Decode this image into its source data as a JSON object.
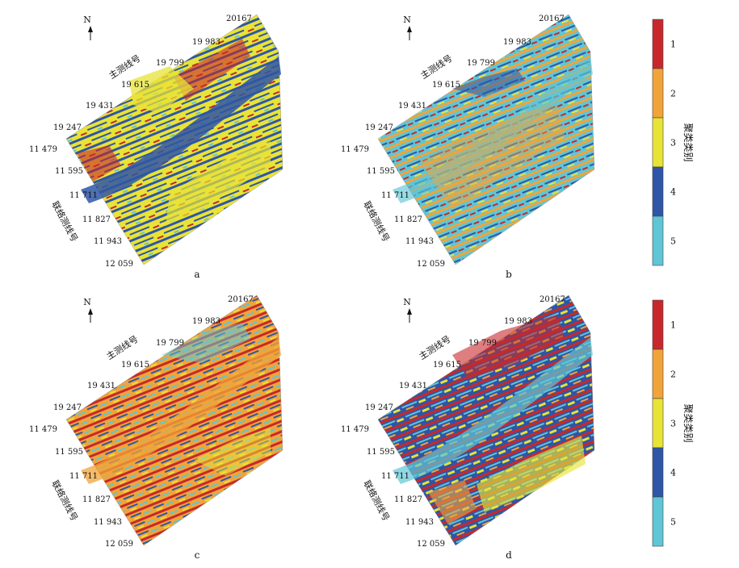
{
  "north_label": "N",
  "main_axis_title": "主测线号",
  "tie_axis_title": "联络测线号",
  "main_line_numbers": [
    "20167",
    "19 983",
    "19 799",
    "19 615",
    "19 431",
    "19 247"
  ],
  "tie_line_numbers": [
    "11 479",
    "11 595",
    "11 711",
    "11 827",
    "11 943",
    "12 059"
  ],
  "panels": [
    {
      "letter": "a",
      "dominant_colors": [
        "#e8e337",
        "#2f56a6"
      ]
    },
    {
      "letter": "b",
      "dominant_colors": [
        "#5fc6d6",
        "#f0a43a"
      ]
    },
    {
      "letter": "c",
      "dominant_colors": [
        "#f0a43a",
        "#c8282b"
      ]
    },
    {
      "letter": "d",
      "dominant_colors": [
        "#2f56a6",
        "#c8282b"
      ]
    }
  ],
  "legend": {
    "title": "聚类类别",
    "classes": [
      {
        "label": "1",
        "color": "#c8282b"
      },
      {
        "label": "2",
        "color": "#f0a43a"
      },
      {
        "label": "3",
        "color": "#e8e337"
      },
      {
        "label": "4",
        "color": "#2f56a6"
      },
      {
        "label": "5",
        "color": "#5fc6d6"
      }
    ]
  }
}
